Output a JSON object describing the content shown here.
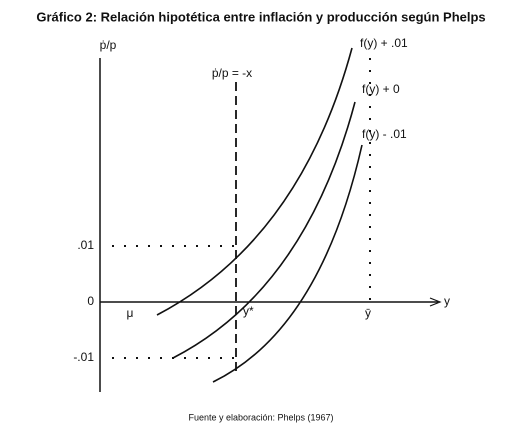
{
  "title": "Gráfico 2: Relación hipotética entre inflación y producción según Phelps",
  "axes": {
    "y_label": "ṗ/p",
    "x_label": "y",
    "y_ticks": [
      ".01",
      "0",
      "-.01"
    ]
  },
  "markers": {
    "mu": "μ",
    "y_star": "y*",
    "y_bar": "ȳ",
    "expectation_line": "ṗ/p = -x"
  },
  "curves": [
    "f(y) + .01",
    "f(y) + 0",
    "f(y) - .01"
  ],
  "source": "Fuente y elaboración: Phelps (1967)"
}
